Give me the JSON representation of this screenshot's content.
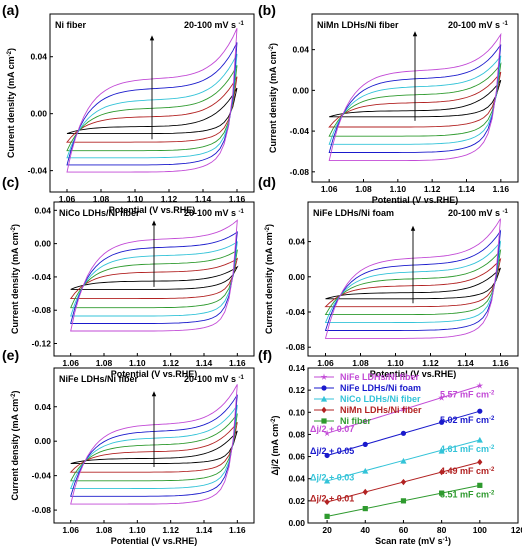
{
  "colors": {
    "black": "#000000",
    "red": "#b22222",
    "green": "#2e9a2e",
    "cyan": "#33c3d8",
    "blue": "#1a1acc",
    "magenta": "#c24ad6"
  },
  "chart_data": [
    {
      "type": "line",
      "panel_letter": "(a)",
      "label": "Ni fiber",
      "rate_label": "20-100 mV s",
      "rate_exp": "-1",
      "xlabel": "Potential (V vs.RHE)",
      "ylabel": "Current density (mA cm",
      "ylabel_exp": "-2",
      "ylabel_close": ")",
      "xlim": [
        1.05,
        1.17
      ],
      "ylim": [
        -0.055,
        0.07
      ],
      "xticks": [
        "1.06",
        "1.08",
        "1.10",
        "1.12",
        "1.14",
        "1.16"
      ],
      "yticks": [
        "-0.04",
        "0.00",
        "0.04"
      ],
      "ytick_values": [
        -0.04,
        0.0,
        0.04
      ],
      "arrow": {
        "x": 1.11,
        "from": -0.018,
        "to": 0.055
      },
      "series": [
        {
          "color": "black",
          "top": -0.009,
          "bottom": -0.014,
          "end_top": 0.018,
          "end_bottom": -0.003
        },
        {
          "color": "red",
          "top": -0.002,
          "bottom": -0.02,
          "end_top": 0.026,
          "end_bottom": -0.007
        },
        {
          "color": "green",
          "top": 0.004,
          "bottom": -0.026,
          "end_top": 0.034,
          "end_bottom": -0.01
        },
        {
          "color": "cyan",
          "top": 0.01,
          "bottom": -0.031,
          "end_top": 0.042,
          "end_bottom": -0.013
        },
        {
          "color": "blue",
          "top": 0.018,
          "bottom": -0.036,
          "end_top": 0.05,
          "end_bottom": -0.016
        },
        {
          "color": "magenta",
          "top": 0.025,
          "bottom": -0.041,
          "end_top": 0.06,
          "end_bottom": -0.018
        }
      ]
    },
    {
      "type": "line",
      "panel_letter": "(b)",
      "label": "NiMn LDHs/Ni fiber",
      "rate_label": "20-100 mV s",
      "rate_exp": "-1",
      "xlabel": "Potential (V vs.RHE)",
      "ylabel": "Current density (mA cm",
      "ylabel_exp": "-2",
      "ylabel_close": ")",
      "xlim": [
        1.05,
        1.17
      ],
      "ylim": [
        -0.09,
        0.075
      ],
      "xticks": [
        "1.06",
        "1.08",
        "1.10",
        "1.12",
        "1.14",
        "1.16"
      ],
      "yticks": [
        "-0.08",
        "-0.04",
        "0.00",
        "0.04"
      ],
      "ytick_values": [
        -0.08,
        -0.04,
        0.0,
        0.04
      ],
      "arrow": {
        "x": 1.11,
        "from": -0.03,
        "to": 0.058
      },
      "series": [
        {
          "color": "black",
          "top": -0.02,
          "bottom": -0.026,
          "end_top": 0.01,
          "end_bottom": -0.012
        },
        {
          "color": "red",
          "top": -0.012,
          "bottom": -0.036,
          "end_top": 0.018,
          "end_bottom": -0.018
        },
        {
          "color": "green",
          "top": -0.004,
          "bottom": -0.045,
          "end_top": 0.026,
          "end_bottom": -0.024
        },
        {
          "color": "cyan",
          "top": 0.004,
          "bottom": -0.053,
          "end_top": 0.034,
          "end_bottom": -0.028
        },
        {
          "color": "blue",
          "top": 0.012,
          "bottom": -0.061,
          "end_top": 0.045,
          "end_bottom": -0.032
        },
        {
          "color": "magenta",
          "top": 0.02,
          "bottom": -0.069,
          "end_top": 0.055,
          "end_bottom": -0.036
        }
      ]
    },
    {
      "type": "line",
      "panel_letter": "(c)",
      "label": "NiCo LDHs/Ni fiber",
      "rate_label": "20-100 mV s",
      "rate_exp": "-1",
      "xlabel": "Potential (V vs.RHE)",
      "ylabel": "Current density (mA cm",
      "ylabel_exp": "-2",
      "ylabel_close": ")",
      "xlim": [
        1.05,
        1.17
      ],
      "ylim": [
        -0.135,
        0.05
      ],
      "xticks": [
        "1.06",
        "1.08",
        "1.10",
        "1.12",
        "1.14",
        "1.16"
      ],
      "yticks": [
        "-0.12",
        "-0.08",
        "-0.04",
        "0.00",
        "0.04"
      ],
      "ytick_values": [
        -0.12,
        -0.08,
        -0.04,
        0.0,
        0.04
      ],
      "arrow": {
        "x": 1.11,
        "from": -0.052,
        "to": 0.028
      },
      "series": [
        {
          "color": "black",
          "top": -0.045,
          "bottom": -0.055,
          "end_top": -0.028,
          "end_bottom": -0.04
        },
        {
          "color": "red",
          "top": -0.034,
          "bottom": -0.066,
          "end_top": -0.018,
          "end_bottom": -0.05
        },
        {
          "color": "green",
          "top": -0.024,
          "bottom": -0.077,
          "end_top": -0.008,
          "end_bottom": -0.058
        },
        {
          "color": "cyan",
          "top": -0.014,
          "bottom": -0.087,
          "end_top": 0.002,
          "end_bottom": -0.066
        },
        {
          "color": "blue",
          "top": -0.004,
          "bottom": -0.096,
          "end_top": 0.014,
          "end_bottom": -0.074
        },
        {
          "color": "magenta",
          "top": 0.006,
          "bottom": -0.105,
          "end_top": 0.028,
          "end_bottom": -0.082
        }
      ]
    },
    {
      "type": "line",
      "panel_letter": "(d)",
      "label": "NiFe LDHs/Ni foam",
      "rate_label": "20-100 mV s",
      "rate_exp": "-1",
      "xlabel": "Potential (V vs.RHE)",
      "ylabel": "Current density (mA cm",
      "ylabel_exp": "-2",
      "ylabel_close": ")",
      "xlim": [
        1.05,
        1.17
      ],
      "ylim": [
        -0.09,
        0.085
      ],
      "xticks": [
        "1.06",
        "1.08",
        "1.10",
        "1.12",
        "1.14",
        "1.16"
      ],
      "yticks": [
        "-0.08",
        "-0.04",
        "0.00",
        "0.04"
      ],
      "ytick_values": [
        -0.08,
        -0.04,
        0.0,
        0.04
      ],
      "arrow": {
        "x": 1.11,
        "from": -0.03,
        "to": 0.058
      },
      "series": [
        {
          "color": "black",
          "top": -0.018,
          "bottom": -0.025,
          "end_top": 0.01,
          "end_bottom": -0.012
        },
        {
          "color": "red",
          "top": -0.01,
          "bottom": -0.034,
          "end_top": 0.02,
          "end_bottom": -0.018
        },
        {
          "color": "green",
          "top": -0.002,
          "bottom": -0.043,
          "end_top": 0.03,
          "end_bottom": -0.024
        },
        {
          "color": "cyan",
          "top": 0.006,
          "bottom": -0.052,
          "end_top": 0.04,
          "end_bottom": -0.03
        },
        {
          "color": "blue",
          "top": 0.014,
          "bottom": -0.061,
          "end_top": 0.052,
          "end_bottom": -0.036
        },
        {
          "color": "magenta",
          "top": 0.022,
          "bottom": -0.07,
          "end_top": 0.066,
          "end_bottom": -0.04
        }
      ]
    },
    {
      "type": "line",
      "panel_letter": "(e)",
      "label": "NiFe LDHs/Ni fiber",
      "rate_label": "20-100 mV s",
      "rate_exp": "-1",
      "xlabel": "Potential (V vs.RHE)",
      "ylabel": "Current density (mA cm",
      "ylabel_exp": "-2",
      "ylabel_close": ")",
      "xlim": [
        1.05,
        1.17
      ],
      "ylim": [
        -0.095,
        0.085
      ],
      "xticks": [
        "1.06",
        "1.08",
        "1.10",
        "1.12",
        "1.14",
        "1.16"
      ],
      "yticks": [
        "-0.08",
        "-0.04",
        "0.00",
        "0.04"
      ],
      "ytick_values": [
        -0.08,
        -0.04,
        0.0,
        0.04
      ],
      "arrow": {
        "x": 1.11,
        "from": -0.03,
        "to": 0.058
      },
      "series": [
        {
          "color": "black",
          "top": -0.02,
          "bottom": -0.026,
          "end_top": 0.012,
          "end_bottom": -0.014
        },
        {
          "color": "red",
          "top": -0.012,
          "bottom": -0.036,
          "end_top": 0.022,
          "end_bottom": -0.02
        },
        {
          "color": "green",
          "top": -0.004,
          "bottom": -0.046,
          "end_top": 0.032,
          "end_bottom": -0.026
        },
        {
          "color": "cyan",
          "top": 0.004,
          "bottom": -0.055,
          "end_top": 0.042,
          "end_bottom": -0.032
        },
        {
          "color": "blue",
          "top": 0.012,
          "bottom": -0.064,
          "end_top": 0.054,
          "end_bottom": -0.038
        },
        {
          "color": "magenta",
          "top": 0.02,
          "bottom": -0.073,
          "end_top": 0.066,
          "end_bottom": -0.044
        }
      ]
    },
    {
      "type": "scatter",
      "panel_letter": "(f)",
      "xlabel": "Scan rate (mV s",
      "xlabel_exp": "-1",
      "xlabel_close": ")",
      "ylabel": "Δj/2 (mA cm",
      "ylabel_exp": "-2",
      "ylabel_close": ")",
      "xlim": [
        10,
        120
      ],
      "ylim": [
        0,
        0.14
      ],
      "xticks": [
        "20",
        "40",
        "60",
        "80",
        "100",
        "120"
      ],
      "xtick_values": [
        20,
        40,
        60,
        80,
        100,
        120
      ],
      "yticks": [
        "0.00",
        "0.02",
        "0.04",
        "0.06",
        "0.08",
        "0.10",
        "0.12",
        "0.14"
      ],
      "ytick_values": [
        0,
        0.02,
        0.04,
        0.06,
        0.08,
        0.1,
        0.12,
        0.14
      ],
      "x": [
        20,
        30,
        40,
        50,
        60,
        70,
        80,
        90,
        100
      ],
      "legend_position": "top-left",
      "series": [
        {
          "name": "NiFe LDHs/Ni fiber",
          "color": "magenta",
          "marker": "star",
          "values": [
            0.081,
            0.086,
            0.092,
            0.097,
            0.103,
            0.108,
            0.113,
            0.119,
            0.124
          ],
          "slope_label": "5.57 mF cm",
          "offset_label": "Δj/2 + 0.07"
        },
        {
          "name": "NiFe LDHs/Ni foam",
          "color": "blue",
          "marker": "circle",
          "values": [
            0.061,
            0.066,
            0.071,
            0.076,
            0.081,
            0.086,
            0.091,
            0.096,
            0.101
          ],
          "slope_label": "5.02 mF cm",
          "offset_label": "Δj/2 + 0.05"
        },
        {
          "name": "NiCo LDHs/Ni fiber",
          "color": "cyan",
          "marker": "triangle",
          "values": [
            0.038,
            0.042,
            0.047,
            0.051,
            0.056,
            0.061,
            0.065,
            0.07,
            0.075
          ],
          "slope_label": "4.61 mF cm",
          "offset_label": "Δj/2 + 0.03"
        },
        {
          "name": "NiMn LDHs/Ni fiber",
          "color": "red",
          "marker": "diamond",
          "values": [
            0.019,
            0.023,
            0.028,
            0.032,
            0.037,
            0.041,
            0.046,
            0.05,
            0.055
          ],
          "slope_label": "4.49 mF cm",
          "offset_label": "Δj/2 + 0.01"
        },
        {
          "name": "Ni fiber",
          "color": "green",
          "marker": "square",
          "values": [
            0.006,
            0.009,
            0.013,
            0.016,
            0.02,
            0.023,
            0.027,
            0.03,
            0.034
          ],
          "slope_label": "3.51 mF cm",
          "offset_label": ""
        }
      ],
      "slope_exp": "-2"
    }
  ]
}
